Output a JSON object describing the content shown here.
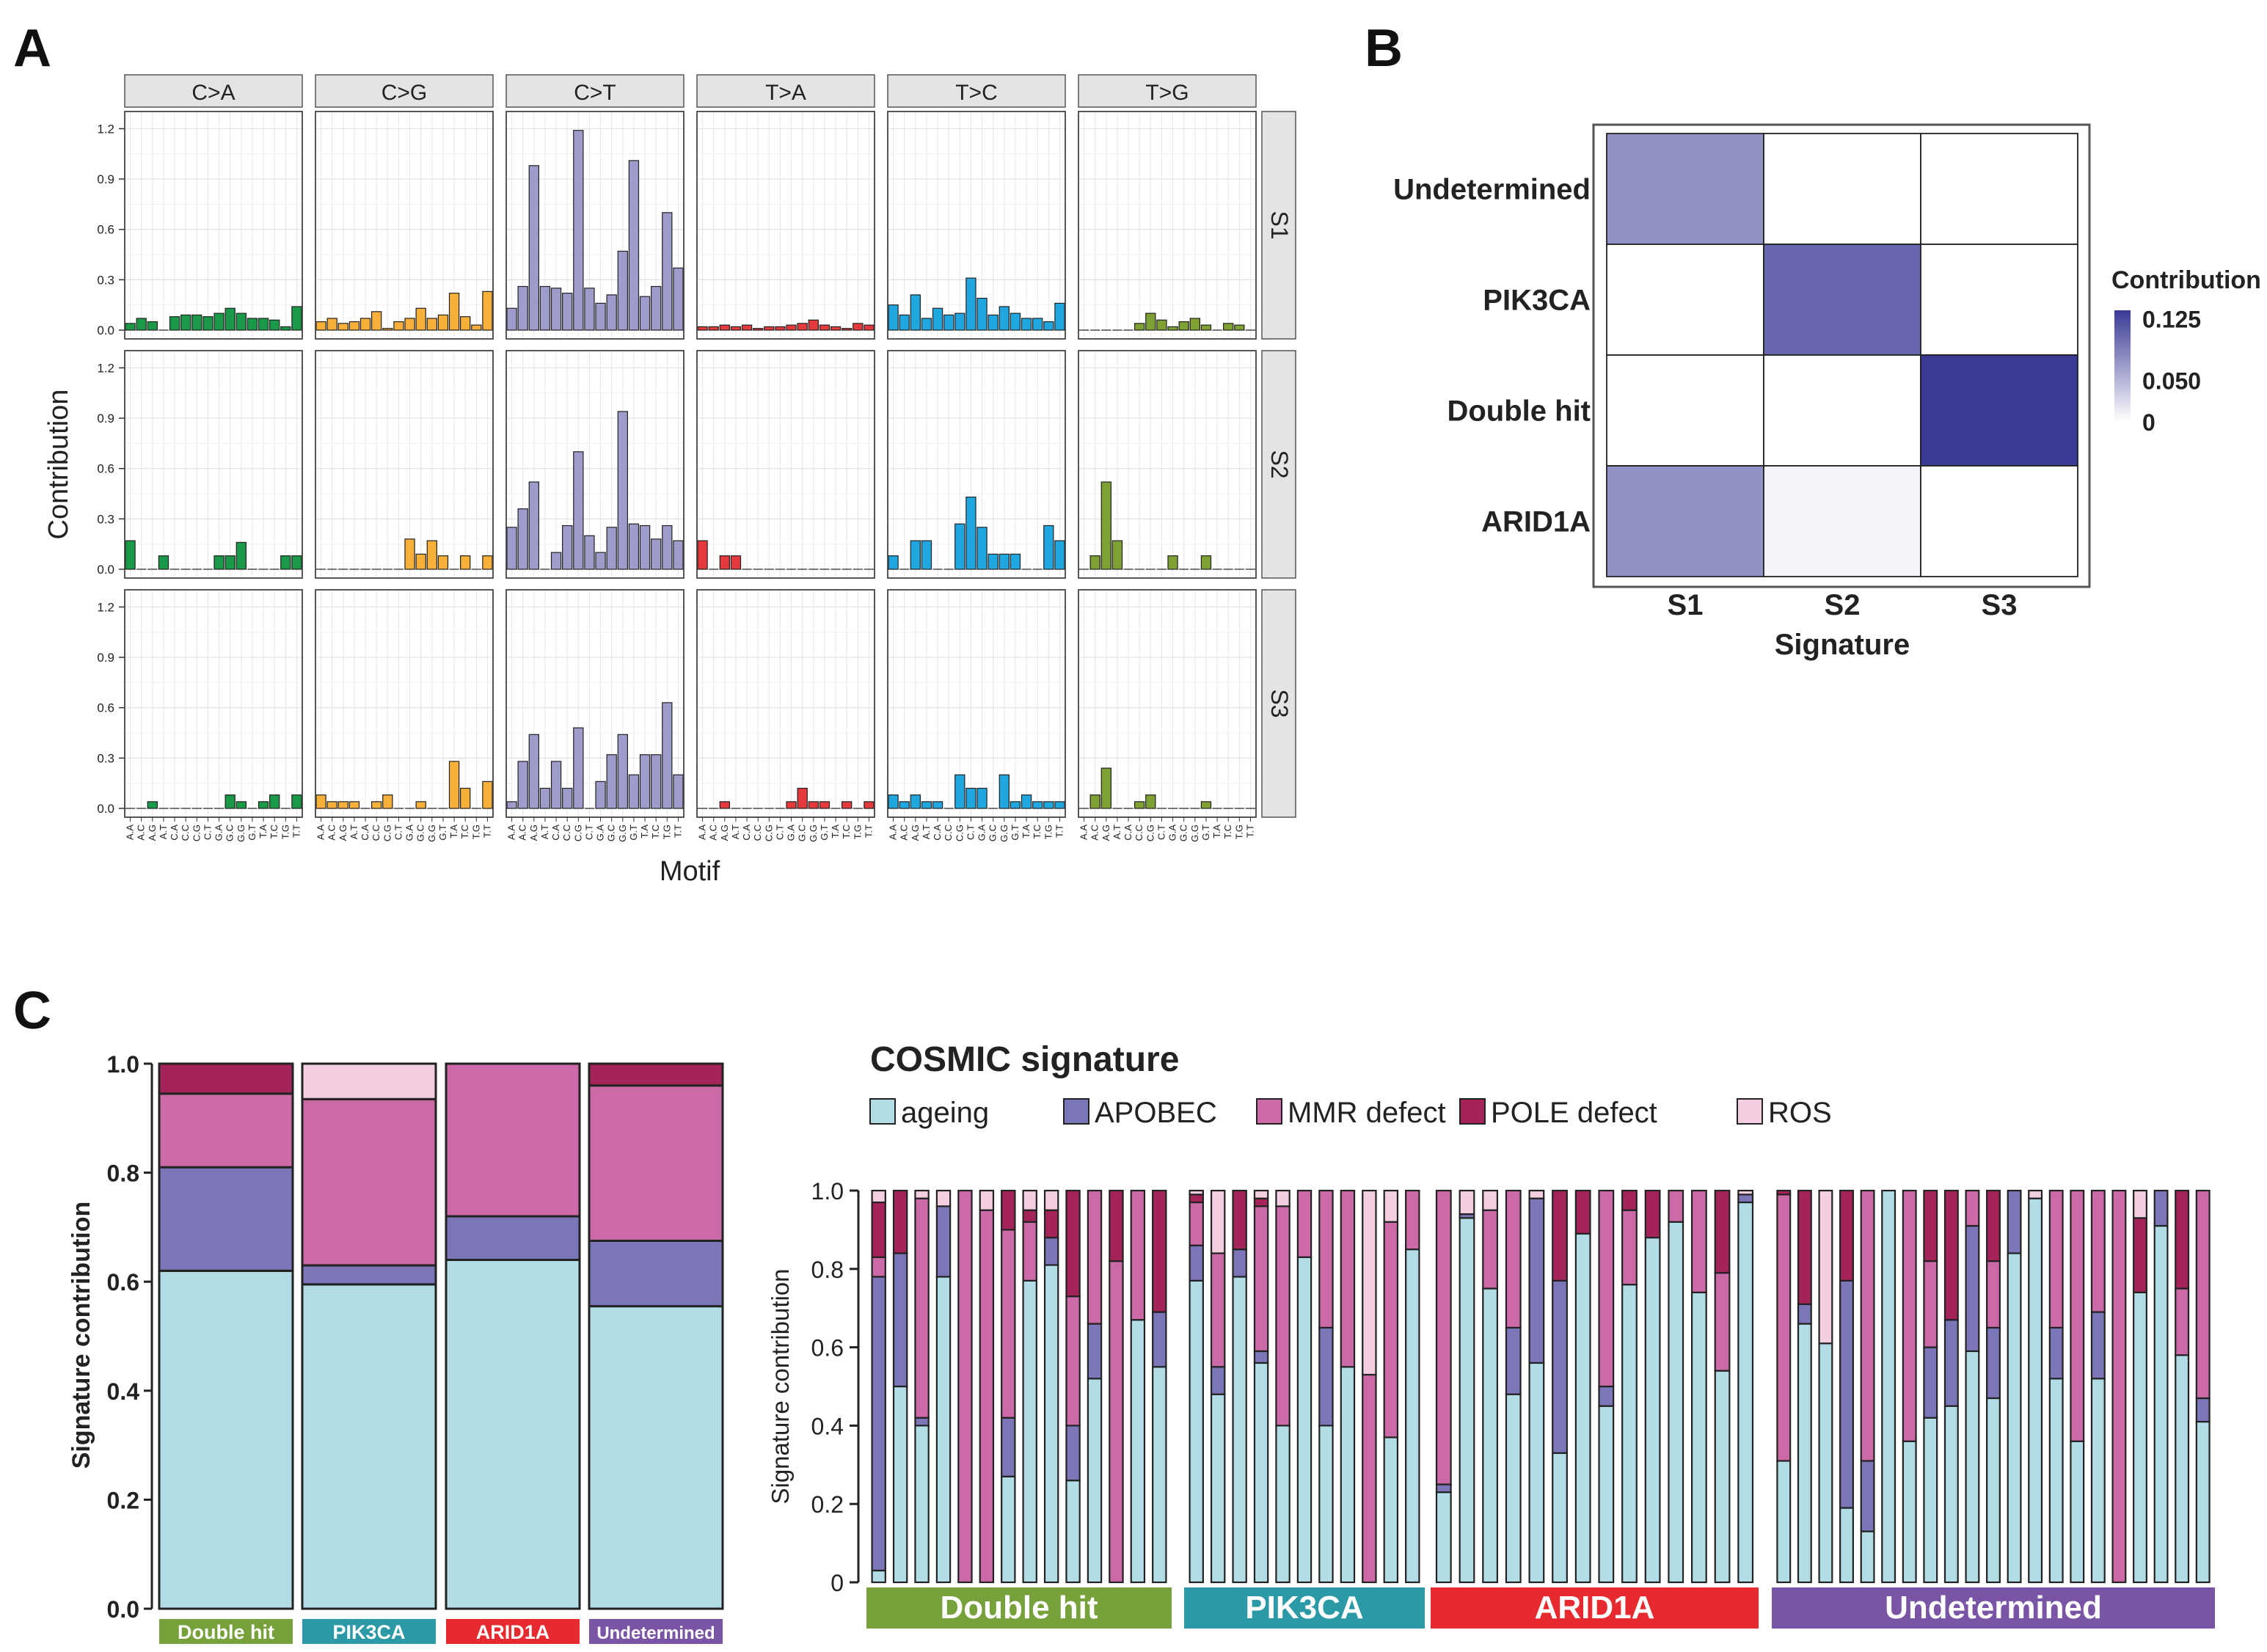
{
  "panel_labels": [
    "A",
    "B",
    "C"
  ],
  "colors": {
    "c2a": "#1a9a48",
    "c2g": "#f7b13b",
    "c2t": "#9e9ccb",
    "t2a": "#e4393d",
    "t2c": "#21a7e0",
    "t2g": "#7fa032",
    "strip": "#e4e4e4",
    "ageing": "#b2dde6",
    "apobec": "#7b76b8",
    "mmr": "#cc6aa8",
    "pole": "#a4245a",
    "ros": "#f4cfe1",
    "double_hit": "#77a13b",
    "pik3ca": "#2b9aa6",
    "arid1a": "#e72a30",
    "undetermined": "#7a55a6",
    "heat_high": "#3b3a96",
    "heat_low": "#ffffff"
  },
  "chart_data": [
    {
      "id": "A",
      "type": "bar",
      "title": "",
      "xlabel": "Motif",
      "ylabel": "Contribution",
      "ylim": [
        0,
        1.25
      ],
      "yticks": [
        0.0,
        0.3,
        0.6,
        0.9,
        1.2
      ],
      "ytick_labels": [
        "0.0",
        "0.3",
        "0.6",
        "0.9",
        "1.2"
      ],
      "facets_x": [
        "C>A",
        "C>G",
        "C>T",
        "T>A",
        "T>C",
        "T>G"
      ],
      "facets_y": [
        "S1",
        "S2",
        "S3"
      ],
      "categories": [
        "A.A",
        "A.C",
        "A.G",
        "A.T",
        "C.A",
        "C.C",
        "C.G",
        "C.T",
        "G.A",
        "G.C",
        "G.G",
        "G.T",
        "T.A",
        "T.C",
        "T.G",
        "T.T"
      ],
      "series": [
        {
          "name": "S1",
          "values": {
            "C>A": [
              0.04,
              0.07,
              0.05,
              0.0,
              0.08,
              0.09,
              0.09,
              0.08,
              0.1,
              0.13,
              0.1,
              0.07,
              0.07,
              0.06,
              0.02,
              0.14
            ],
            "C>G": [
              0.05,
              0.07,
              0.04,
              0.05,
              0.07,
              0.11,
              0.01,
              0.05,
              0.07,
              0.13,
              0.07,
              0.09,
              0.22,
              0.08,
              0.03,
              0.23
            ],
            "C>T": [
              0.13,
              0.26,
              0.98,
              0.26,
              0.25,
              0.22,
              1.19,
              0.25,
              0.16,
              0.21,
              0.47,
              1.01,
              0.2,
              0.26,
              0.7,
              0.37
            ],
            "T>A": [
              0.02,
              0.02,
              0.03,
              0.02,
              0.03,
              0.01,
              0.02,
              0.02,
              0.03,
              0.04,
              0.06,
              0.03,
              0.02,
              0.01,
              0.04,
              0.03
            ],
            "T>C": [
              0.15,
              0.09,
              0.21,
              0.07,
              0.13,
              0.09,
              0.1,
              0.31,
              0.19,
              0.09,
              0.14,
              0.1,
              0.07,
              0.07,
              0.05,
              0.16
            ],
            "T>G": [
              0.0,
              0.0,
              0.0,
              0.0,
              0.0,
              0.04,
              0.1,
              0.06,
              0.02,
              0.05,
              0.07,
              0.03,
              0.0,
              0.04,
              0.03,
              0.0
            ]
          }
        },
        {
          "name": "S2",
          "values": {
            "C>A": [
              0.17,
              0.0,
              0.0,
              0.08,
              0.0,
              0.0,
              0.0,
              0.0,
              0.08,
              0.08,
              0.16,
              0.0,
              0.0,
              0.0,
              0.08,
              0.08
            ],
            "C>G": [
              0.0,
              0.0,
              0.0,
              0.0,
              0.0,
              0.0,
              0.0,
              0.0,
              0.18,
              0.09,
              0.17,
              0.08,
              0.0,
              0.08,
              0.0,
              0.08
            ],
            "C>T": [
              0.25,
              0.36,
              0.52,
              0.0,
              0.1,
              0.26,
              0.7,
              0.2,
              0.1,
              0.25,
              0.94,
              0.27,
              0.26,
              0.18,
              0.26,
              0.17
            ],
            "T>A": [
              0.17,
              0.0,
              0.08,
              0.08,
              0.0,
              0.0,
              0.0,
              0.0,
              0.0,
              0.0,
              0.0,
              0.0,
              0.0,
              0.0,
              0.0,
              0.0
            ],
            "T>C": [
              0.08,
              0.0,
              0.17,
              0.17,
              0.0,
              0.0,
              0.27,
              0.43,
              0.25,
              0.09,
              0.09,
              0.09,
              0.0,
              0.0,
              0.26,
              0.17
            ],
            "T>G": [
              0.0,
              0.08,
              0.52,
              0.17,
              0.0,
              0.0,
              0.0,
              0.0,
              0.08,
              0.0,
              0.0,
              0.08,
              0.0,
              0.0,
              0.0,
              0.0
            ]
          }
        },
        {
          "name": "S3",
          "values": {
            "C>A": [
              0.0,
              0.0,
              0.04,
              0.0,
              0.0,
              0.0,
              0.0,
              0.0,
              0.0,
              0.08,
              0.04,
              0.0,
              0.04,
              0.08,
              0.0,
              0.08
            ],
            "C>G": [
              0.08,
              0.04,
              0.04,
              0.04,
              0.0,
              0.04,
              0.08,
              0.0,
              0.0,
              0.04,
              0.0,
              0.0,
              0.28,
              0.12,
              0.0,
              0.16
            ],
            "C>T": [
              0.04,
              0.28,
              0.44,
              0.12,
              0.28,
              0.12,
              0.48,
              0.0,
              0.16,
              0.32,
              0.44,
              0.2,
              0.32,
              0.32,
              0.63,
              0.2
            ],
            "T>A": [
              0.0,
              0.0,
              0.04,
              0.0,
              0.0,
              0.0,
              0.0,
              0.0,
              0.04,
              0.12,
              0.04,
              0.04,
              0.0,
              0.04,
              0.0,
              0.04
            ],
            "T>C": [
              0.08,
              0.04,
              0.08,
              0.04,
              0.04,
              0.0,
              0.2,
              0.12,
              0.12,
              0.0,
              0.2,
              0.04,
              0.08,
              0.04,
              0.04,
              0.04
            ],
            "T>G": [
              0.0,
              0.08,
              0.24,
              0.0,
              0.0,
              0.04,
              0.08,
              0.0,
              0.0,
              0.0,
              0.0,
              0.04,
              0.0,
              0.0,
              0.0,
              0.0
            ]
          }
        }
      ]
    },
    {
      "id": "B",
      "type": "heatmap",
      "xlabel": "Signature",
      "ylabel": "",
      "x": [
        "S1",
        "S2",
        "S3"
      ],
      "y": [
        "Undetermined",
        "PIK3CA",
        "Double hit",
        "ARID1A"
      ],
      "values": [
        [
          0.075,
          0.0,
          0.0
        ],
        [
          0.0,
          0.105,
          0.0
        ],
        [
          0.0,
          0.0,
          0.135
        ],
        [
          0.075,
          0.008,
          0.0
        ]
      ],
      "legend_title": "Contribution",
      "legend_ticks": [
        0.125,
        0.05,
        0
      ],
      "legend_tick_labels": [
        "0.125",
        "0.050",
        "0"
      ],
      "legend_max": 0.135
    },
    {
      "id": "C1",
      "type": "bar",
      "stacked": true,
      "xlabel": "",
      "ylabel": "Signature contribution",
      "ylim": [
        0,
        1.0
      ],
      "yticks": [
        0.0,
        0.2,
        0.4,
        0.6,
        0.8,
        1.0
      ],
      "ytick_labels": [
        "0.0",
        "0.2",
        "0.4",
        "0.6",
        "0.8",
        "1.0"
      ],
      "categories": [
        "Double hit",
        "PIK3CA",
        "ARID1A",
        "Undetermined"
      ],
      "series": [
        {
          "name": "ageing",
          "values": [
            0.62,
            0.595,
            0.64,
            0.555
          ]
        },
        {
          "name": "APOBEC",
          "values": [
            0.19,
            0.035,
            0.08,
            0.12
          ]
        },
        {
          "name": "MMR defect",
          "values": [
            0.135,
            0.305,
            0.28,
            0.285
          ]
        },
        {
          "name": "POLE defect",
          "values": [
            0.055,
            0.0,
            0.0,
            0.04
          ]
        },
        {
          "name": "ROS",
          "values": [
            0.0,
            0.065,
            0.0,
            0.0
          ]
        }
      ]
    },
    {
      "id": "C2",
      "type": "bar",
      "stacked": true,
      "title": "COSMIC signature",
      "xlabel": "",
      "ylabel": "Signature contribution",
      "ylim": [
        0,
        1.0
      ],
      "yticks": [
        0.0,
        0.2,
        0.4,
        0.6,
        0.8,
        1.0
      ],
      "ytick_labels": [
        "0",
        "0.2",
        "0.4",
        "0.6",
        "0.8",
        "1.0"
      ],
      "legend": [
        "ageing",
        "APOBEC",
        "MMR defect",
        "POLE defect",
        "ROS"
      ],
      "groups": [
        {
          "name": "Double hit",
          "samples": [
            [
              0.03,
              0.75,
              0.05,
              0.14,
              0.03
            ],
            [
              0.5,
              0.34,
              0.0,
              0.16,
              0.0
            ],
            [
              0.4,
              0.02,
              0.56,
              0.0,
              0.02
            ],
            [
              0.78,
              0.18,
              0.0,
              0.0,
              0.04
            ],
            [
              0.0,
              0.0,
              1.0,
              0.0,
              0.0
            ],
            [
              0.0,
              0.0,
              0.95,
              0.0,
              0.05
            ],
            [
              0.27,
              0.15,
              0.48,
              0.1,
              0.0
            ],
            [
              0.77,
              0.0,
              0.15,
              0.03,
              0.05
            ],
            [
              0.81,
              0.07,
              0.0,
              0.07,
              0.05
            ],
            [
              0.26,
              0.14,
              0.33,
              0.27,
              0.0
            ],
            [
              0.52,
              0.14,
              0.34,
              0.0,
              0.0
            ],
            [
              0.0,
              0.0,
              0.82,
              0.18,
              0.0
            ],
            [
              0.67,
              0.0,
              0.33,
              0.0,
              0.0
            ],
            [
              0.55,
              0.14,
              0.0,
              0.31,
              0.0
            ]
          ]
        },
        {
          "name": "PIK3CA",
          "samples": [
            [
              0.77,
              0.09,
              0.11,
              0.02,
              0.01
            ],
            [
              0.48,
              0.07,
              0.29,
              0.0,
              0.16
            ],
            [
              0.78,
              0.07,
              0.0,
              0.15,
              0.0
            ],
            [
              0.56,
              0.03,
              0.37,
              0.02,
              0.02
            ],
            [
              0.4,
              0.0,
              0.56,
              0.0,
              0.04
            ],
            [
              0.83,
              0.0,
              0.17,
              0.0,
              0.0
            ],
            [
              0.4,
              0.25,
              0.35,
              0.0,
              0.0
            ],
            [
              0.55,
              0.0,
              0.45,
              0.0,
              0.0
            ],
            [
              0.0,
              0.0,
              0.53,
              0.0,
              0.47
            ],
            [
              0.37,
              0.0,
              0.55,
              0.0,
              0.08
            ],
            [
              0.85,
              0.0,
              0.15,
              0.0,
              0.0
            ]
          ]
        },
        {
          "name": "ARID1A",
          "samples": [
            [
              0.23,
              0.02,
              0.75,
              0.0,
              0.0
            ],
            [
              0.93,
              0.01,
              0.0,
              0.0,
              0.06
            ],
            [
              0.75,
              0.0,
              0.2,
              0.0,
              0.05
            ],
            [
              0.48,
              0.17,
              0.35,
              0.0,
              0.0
            ],
            [
              0.56,
              0.42,
              0.0,
              0.0,
              0.02
            ],
            [
              0.33,
              0.44,
              0.0,
              0.23,
              0.0
            ],
            [
              0.89,
              0.0,
              0.0,
              0.11,
              0.0
            ],
            [
              0.45,
              0.05,
              0.5,
              0.0,
              0.0
            ],
            [
              0.76,
              0.0,
              0.19,
              0.05,
              0.0
            ],
            [
              0.88,
              0.0,
              0.0,
              0.12,
              0.0
            ],
            [
              0.92,
              0.0,
              0.08,
              0.0,
              0.0
            ],
            [
              0.74,
              0.0,
              0.26,
              0.0,
              0.0
            ],
            [
              0.54,
              0.0,
              0.25,
              0.21,
              0.0
            ],
            [
              0.97,
              0.02,
              0.0,
              0.0,
              0.01
            ]
          ]
        },
        {
          "name": "Undetermined",
          "samples": [
            [
              0.31,
              0.0,
              0.68,
              0.01,
              0.0
            ],
            [
              0.66,
              0.05,
              0.0,
              0.29,
              0.0
            ],
            [
              0.61,
              0.0,
              0.0,
              0.0,
              0.39
            ],
            [
              0.19,
              0.58,
              0.0,
              0.23,
              0.0
            ],
            [
              0.13,
              0.18,
              0.69,
              0.0,
              0.0
            ],
            [
              1.0,
              0.0,
              0.0,
              0.0,
              0.0
            ],
            [
              0.36,
              0.0,
              0.64,
              0.0,
              0.0
            ],
            [
              0.42,
              0.18,
              0.22,
              0.18,
              0.0
            ],
            [
              0.45,
              0.22,
              0.0,
              0.33,
              0.0
            ],
            [
              0.59,
              0.32,
              0.09,
              0.0,
              0.0
            ],
            [
              0.47,
              0.18,
              0.17,
              0.18,
              0.0
            ],
            [
              0.84,
              0.16,
              0.0,
              0.0,
              0.0
            ],
            [
              0.98,
              0.0,
              0.0,
              0.0,
              0.02
            ],
            [
              0.52,
              0.13,
              0.35,
              0.0,
              0.0
            ],
            [
              0.36,
              0.0,
              0.64,
              0.0,
              0.0
            ],
            [
              0.52,
              0.17,
              0.31,
              0.0,
              0.0
            ],
            [
              0.0,
              0.0,
              1.0,
              0.0,
              0.0
            ],
            [
              0.74,
              0.0,
              0.0,
              0.19,
              0.07
            ],
            [
              0.91,
              0.09,
              0.0,
              0.0,
              0.0
            ],
            [
              0.58,
              0.0,
              0.17,
              0.25,
              0.0
            ],
            [
              0.41,
              0.06,
              0.53,
              0.0,
              0.0
            ]
          ]
        }
      ]
    }
  ]
}
